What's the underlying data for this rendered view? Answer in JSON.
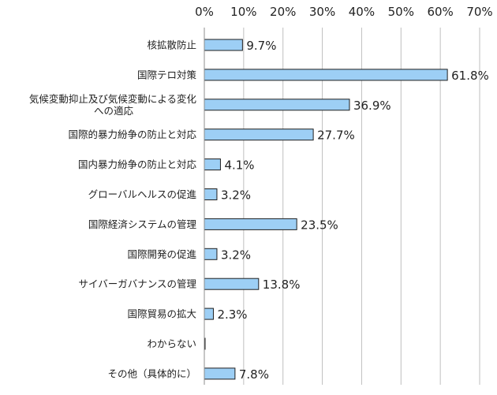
{
  "chart_data": {
    "type": "bar",
    "orientation": "horizontal",
    "categories": [
      [
        "核拡散防止"
      ],
      [
        "国際テロ対策"
      ],
      [
        "気候変動抑止及び気候変動による変化",
        "への適応"
      ],
      [
        "国際的暴力紛争の防止と対応"
      ],
      [
        "国内暴力紛争の防止と対応"
      ],
      [
        "グローバルヘルスの促進"
      ],
      [
        "国際経済システムの管理"
      ],
      [
        "国際開発の促進"
      ],
      [
        "サイバーガバナンスの管理"
      ],
      [
        "国際貿易の拡大"
      ],
      [
        "わからない"
      ],
      [
        "その他（具体的に）"
      ]
    ],
    "values": [
      9.7,
      61.8,
      36.9,
      27.7,
      4.1,
      3.2,
      23.5,
      3.2,
      13.8,
      2.3,
      0.1,
      7.8
    ],
    "data_labels": [
      "9.7%",
      "61.8%",
      "36.9%",
      "27.7%",
      "4.1%",
      "3.2%",
      "23.5%",
      "3.2%",
      "13.8%",
      "2.3%",
      "",
      "7.8%"
    ],
    "x_ticks": [
      0,
      10,
      20,
      30,
      40,
      50,
      60,
      70
    ],
    "x_tick_labels": [
      "0%",
      "10%",
      "20%",
      "30%",
      "40%",
      "50%",
      "60%",
      "70%"
    ],
    "xlim": [
      0,
      70
    ],
    "x_axis_position": "top",
    "grid": true,
    "legend": "none",
    "title": "",
    "xlabel": "",
    "ylabel": "",
    "colors": {
      "bar_fill": "#9DCFF5",
      "bar_stroke": "#1F1F1F",
      "grid": "#BFBFBF",
      "axis": "#8C8C8C"
    }
  }
}
